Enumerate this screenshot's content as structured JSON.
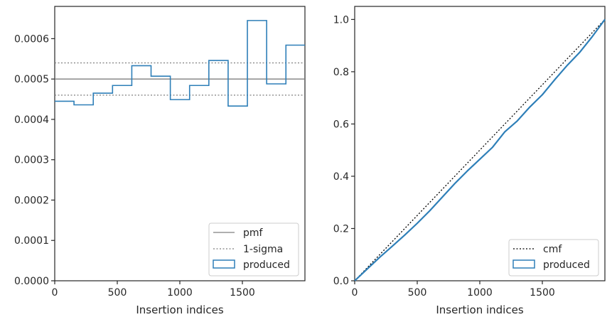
{
  "colors": {
    "step": "#2e7fb8",
    "reference": "#7f7f7f",
    "cmf": "#000000",
    "axis": "#262626"
  },
  "chart_data": [
    {
      "type": "histogram",
      "xlabel": "Insertion indices",
      "ylabel": "",
      "xlim": [
        0,
        2000
      ],
      "ylim": [
        0,
        0.00068
      ],
      "x_ticks": [
        0,
        500,
        1000,
        1500
      ],
      "x_tick_labels": [
        "0",
        "500",
        "1000",
        "1500"
      ],
      "y_ticks": [
        0,
        0.0001,
        0.0002,
        0.0003,
        0.0004,
        0.0005,
        0.0006
      ],
      "y_tick_labels": [
        "0.0000",
        "0.0001",
        "0.0002",
        "0.0003",
        "0.0004",
        "0.0005",
        "0.0006"
      ],
      "reference_lines": [
        {
          "name": "pmf",
          "y": 0.0005,
          "style": "solid"
        },
        {
          "name": "1-sigma",
          "y": 0.00054,
          "style": "dotted"
        },
        {
          "name": "1-sigma",
          "y": 0.00046,
          "style": "dotted"
        }
      ],
      "series": [
        {
          "name": "produced",
          "bin_edges": [
            0,
            154,
            308,
            462,
            616,
            770,
            924,
            1078,
            1232,
            1386,
            1540,
            1694,
            1848,
            2000
          ],
          "values": [
            0.000445,
            0.000436,
            0.000465,
            0.000484,
            0.000533,
            0.000507,
            0.000449,
            0.000484,
            0.000546,
            0.000433,
            0.000645,
            0.000488,
            0.000584
          ]
        }
      ],
      "legend": {
        "position": "lower-right",
        "entries": [
          "pmf",
          "1-sigma",
          "produced"
        ]
      }
    },
    {
      "type": "line",
      "xlabel": "Insertion indices",
      "ylabel": "",
      "xlim": [
        0,
        2000
      ],
      "ylim": [
        0,
        1.05
      ],
      "x_ticks": [
        0,
        500,
        1000,
        1500
      ],
      "x_tick_labels": [
        "0",
        "500",
        "1000",
        "1500"
      ],
      "y_ticks": [
        0,
        0.2,
        0.4,
        0.6,
        0.8,
        1.0
      ],
      "y_tick_labels": [
        "0.0",
        "0.2",
        "0.4",
        "0.6",
        "0.8",
        "1.0"
      ],
      "series": [
        {
          "name": "cmf",
          "style": "dotted",
          "x": [
            0,
            2000
          ],
          "y": [
            0,
            1.0
          ]
        },
        {
          "name": "produced",
          "style": "step",
          "x": [
            0,
            100,
            200,
            300,
            400,
            500,
            600,
            700,
            800,
            900,
            1000,
            1100,
            1200,
            1300,
            1400,
            1500,
            1600,
            1700,
            1800,
            1900,
            2000
          ],
          "y": [
            0,
            0.045,
            0.09,
            0.132,
            0.175,
            0.22,
            0.268,
            0.32,
            0.372,
            0.42,
            0.465,
            0.51,
            0.57,
            0.612,
            0.665,
            0.712,
            0.77,
            0.825,
            0.875,
            0.935,
            1.0
          ]
        }
      ],
      "legend": {
        "position": "lower-right",
        "entries": [
          "cmf",
          "produced"
        ]
      }
    }
  ]
}
